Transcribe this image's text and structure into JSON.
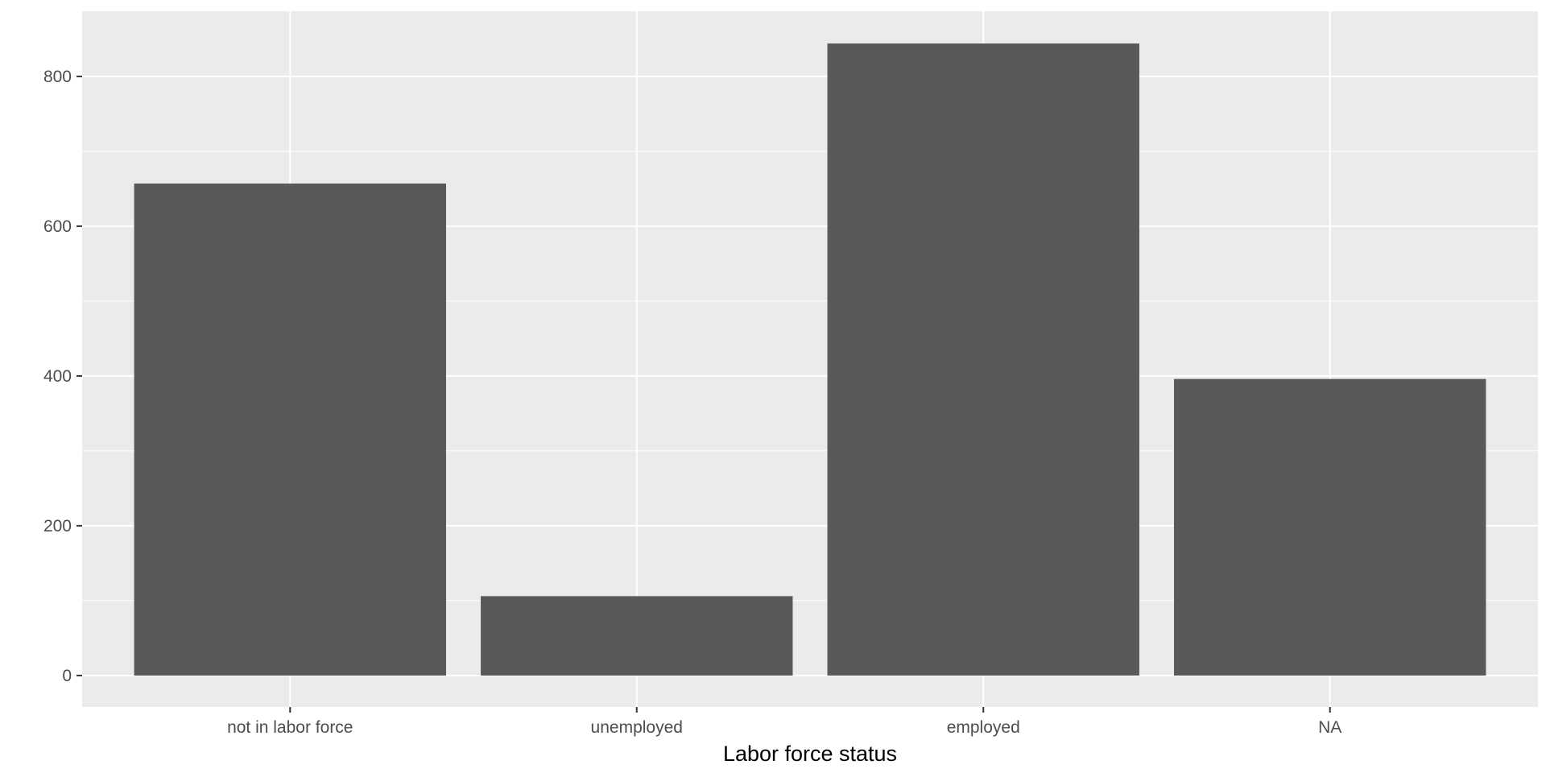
{
  "chart_data": {
    "type": "bar",
    "categories": [
      "not in labor force",
      "unemployed",
      "employed",
      "NA"
    ],
    "values": [
      657,
      106,
      844,
      396
    ],
    "title": "",
    "xlabel": "Labor force status",
    "ylabel": "",
    "ylim": [
      -42,
      887
    ],
    "yticks": [
      0,
      200,
      400,
      600,
      800
    ],
    "ytick_labels": [
      "0",
      "200",
      "400",
      "600",
      "800"
    ],
    "grid": true,
    "colors": {
      "panel_background": "#ebebeb",
      "grid_major": "#ffffff",
      "bar_fill": "#595959",
      "tick_mark": "#333333"
    }
  }
}
